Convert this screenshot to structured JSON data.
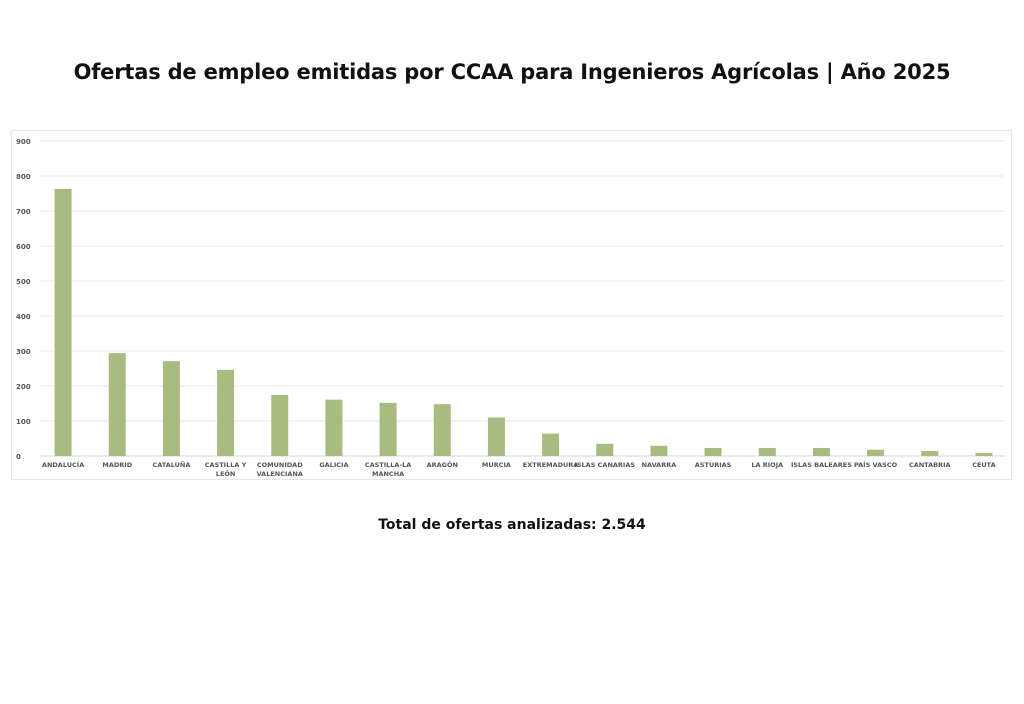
{
  "title": "Ofertas de empleo emitidas por CCAA para Ingenieros Agrícolas | Año 2025",
  "footer": {
    "total_text": "Total de ofertas analizadas: 2.544"
  },
  "colors": {
    "bar": "#a8bb80",
    "grid": "#e9e9e9",
    "tick_text": "#555555"
  },
  "chart_data": {
    "type": "bar",
    "title": "Ofertas de empleo emitidas por CCAA para Ingenieros Agrícolas | Año 2025",
    "xlabel": "",
    "ylabel": "",
    "ylim": [
      0,
      900
    ],
    "yticks": [
      0,
      100,
      200,
      300,
      400,
      500,
      600,
      700,
      800,
      900
    ],
    "grid": true,
    "legend": "none",
    "categories": [
      "ANDALUCÍA",
      "MADRID",
      "CATALUÑA",
      "CASTILLA Y LEÓN",
      "COMUNIDAD VALENCIANA",
      "GALICIA",
      "CASTILLA-LA MANCHA",
      "ARAGÓN",
      "MURCIA",
      "EXTREMADURA",
      "ISLAS CANARIAS",
      "NAVARRA",
      "ASTURIAS",
      "LA RIOJA",
      "ISLAS BALEARES",
      "PAÍS VASCO",
      "CANTABRIA",
      "CEUTA"
    ],
    "category_label_lines": [
      [
        "ANDALUCÍA"
      ],
      [
        "MADRID"
      ],
      [
        "CATALUÑA"
      ],
      [
        "CASTILLA Y",
        "LEÓN"
      ],
      [
        "COMUNIDAD",
        "VALENCIANA"
      ],
      [
        "GALICIA"
      ],
      [
        "CASTILLA-LA",
        "MANCHA"
      ],
      [
        "ARAGÓN"
      ],
      [
        "MURCIA"
      ],
      [
        "EXTREMADURA"
      ],
      [
        "ISLAS CANARIAS"
      ],
      [
        "NAVARRA"
      ],
      [
        "ASTURIAS"
      ],
      [
        "LA RIOJA"
      ],
      [
        "ISLAS BALEARES"
      ],
      [
        "PAÍS VASCO"
      ],
      [
        "CANTABRIA"
      ],
      [
        "CEUTA"
      ]
    ],
    "values": [
      763,
      294,
      271,
      246,
      174,
      161,
      152,
      148,
      110,
      64,
      35,
      29,
      23,
      23,
      23,
      18,
      14,
      9
    ]
  }
}
